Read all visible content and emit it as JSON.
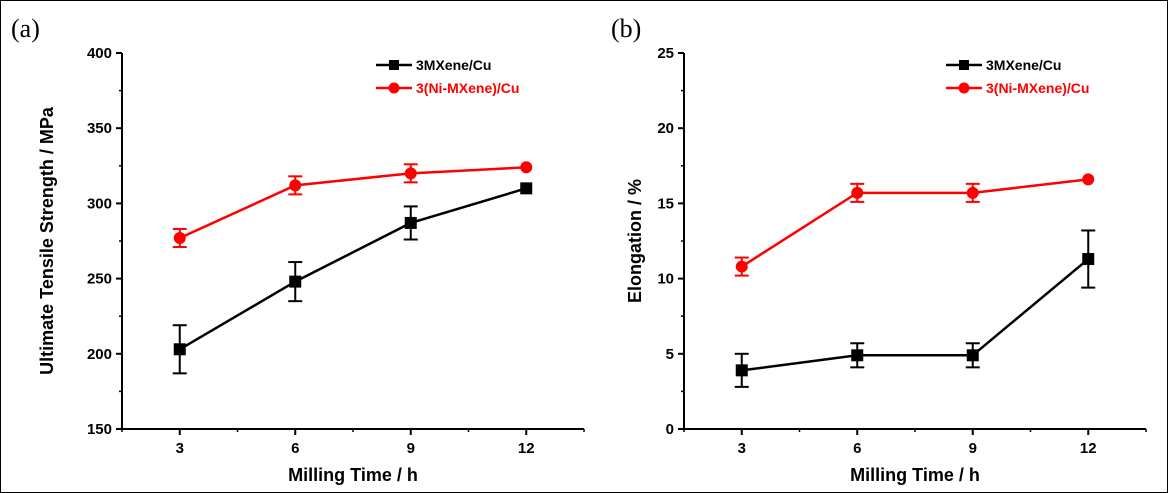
{
  "chart_data": [
    {
      "type": "line",
      "panel_label": "(a)",
      "xlabel": "Milling Time / h",
      "ylabel": "Ultimate Tensile Strength / MPa",
      "categories": [
        "3",
        "6",
        "9",
        "12"
      ],
      "x": [
        3,
        6,
        9,
        12
      ],
      "ylim": [
        150,
        400
      ],
      "yticks": [
        "150",
        "200",
        "250",
        "300",
        "350",
        "400"
      ],
      "legend_position": "top-right",
      "grid": false,
      "series": [
        {
          "name": "3MXene/Cu",
          "color": "#000000",
          "marker": "square",
          "values": [
            203,
            248,
            287,
            310
          ],
          "errors": [
            16,
            13,
            11,
            0
          ]
        },
        {
          "name": "3(Ni-MXene)/Cu",
          "color": "#ff0000",
          "marker": "circle",
          "values": [
            277,
            312,
            320,
            324
          ],
          "errors": [
            6,
            6,
            6,
            0
          ]
        }
      ]
    },
    {
      "type": "line",
      "panel_label": "(b)",
      "xlabel": "Milling Time / h",
      "ylabel": "Elongation / %",
      "categories": [
        "3",
        "6",
        "9",
        "12"
      ],
      "x": [
        3,
        6,
        9,
        12
      ],
      "ylim": [
        0,
        25
      ],
      "yticks": [
        "0",
        "5",
        "10",
        "15",
        "20",
        "25"
      ],
      "legend_position": "top-right",
      "grid": false,
      "series": [
        {
          "name": "3MXene/Cu",
          "color": "#000000",
          "marker": "square",
          "values": [
            3.9,
            4.9,
            4.9,
            11.3
          ],
          "errors": [
            1.1,
            0.8,
            0.8,
            1.9
          ]
        },
        {
          "name": "3(Ni-MXene)/Cu",
          "color": "#ff0000",
          "marker": "circle",
          "values": [
            10.8,
            15.7,
            15.7,
            16.6
          ],
          "errors": [
            0.6,
            0.6,
            0.6,
            0
          ]
        }
      ]
    }
  ]
}
